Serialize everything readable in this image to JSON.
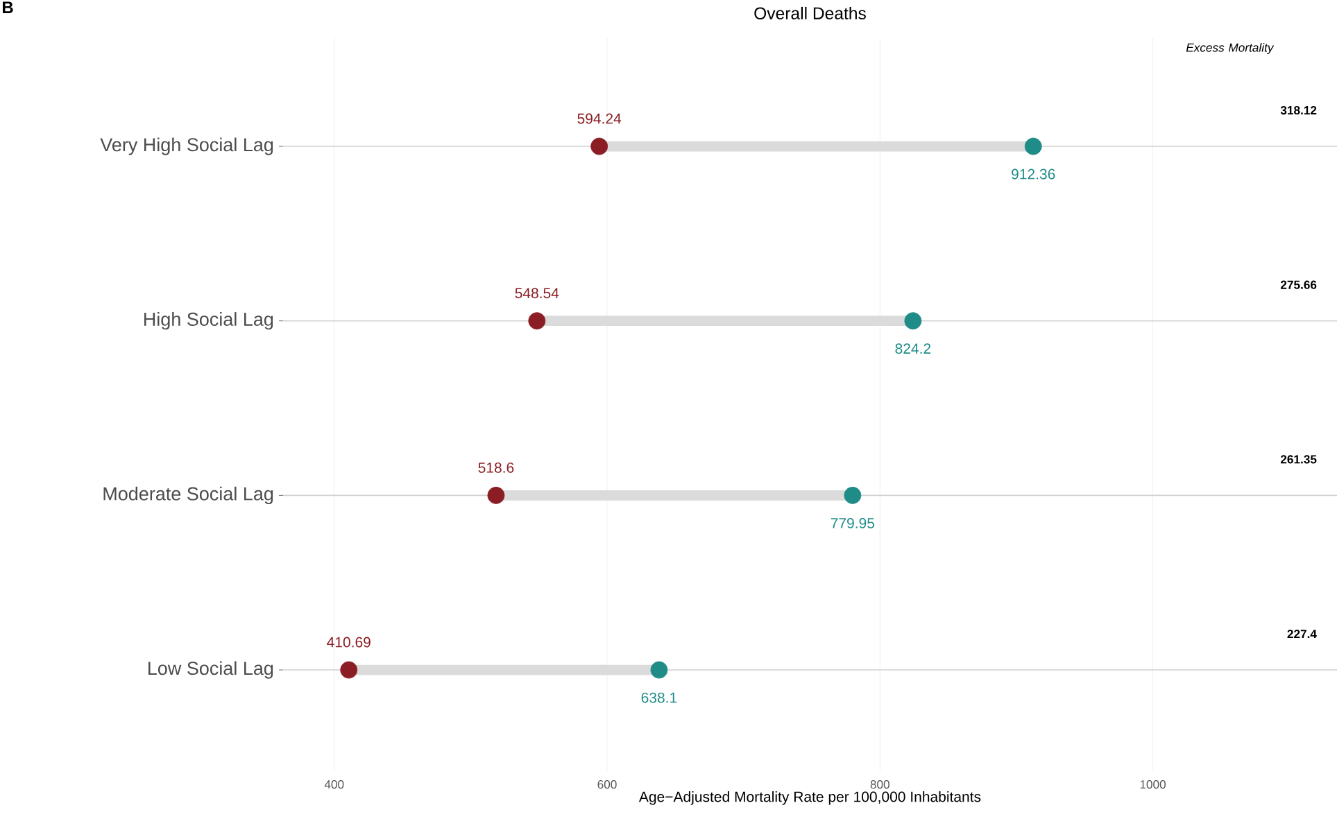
{
  "chart_data": {
    "type": "scatter",
    "orientation": "horizontal",
    "title": "Overall Deaths",
    "xlabel": "Age−Adjusted Mortality Rate per 100,000 Inhabitants",
    "categories": [
      "Very High Social Lag",
      "High Social Lag",
      "Moderate Social Lag",
      "Low Social Lag"
    ],
    "xlim": [
      362.5,
      1135
    ],
    "xticks": [
      400,
      600,
      800,
      1000
    ],
    "grid": true,
    "annotations": [
      "B",
      "Excess Mortality",
      "318.12",
      "275.66",
      "261.35",
      "227.4"
    ],
    "series": [
      {
        "color": "#8b1e24",
        "values": [
          594.24,
          548.54,
          518.6,
          410.69
        ],
        "value_labels": [
          "594.24",
          "548.54",
          "518.6",
          "410.69"
        ]
      },
      {
        "color": "#1f8c88",
        "values": [
          912.36,
          824.2,
          779.95,
          638.1
        ],
        "value_labels": [
          "912.36",
          "824.2",
          "779.95",
          "638.1"
        ]
      }
    ]
  }
}
